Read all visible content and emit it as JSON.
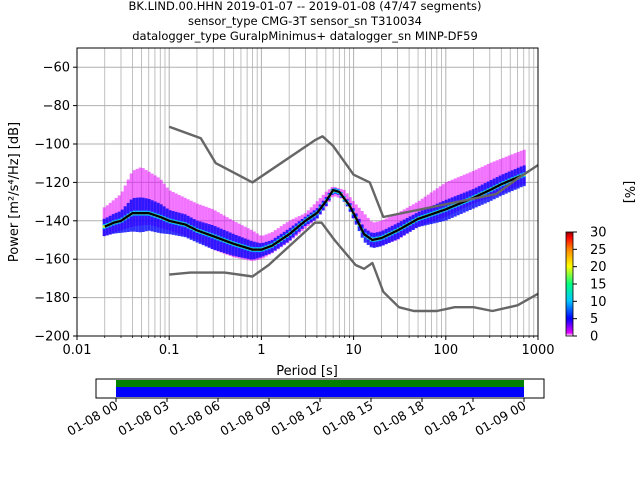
{
  "title_lines": [
    "BK.LIND.00.HHN   2019-01-07 -- 2019-01-08  (47/47 segments)",
    "sensor_type CMG-3T sensor_sn T310034",
    "datalogger_type GuralpMinimus+ datalogger_sn MINP-DF59"
  ],
  "colorbar": {
    "label": "[%]",
    "ticks": [
      "0",
      "5",
      "10",
      "15",
      "20",
      "25",
      "30"
    ],
    "colors": [
      "#ffffff",
      "#e600ff",
      "#0000ff",
      "#00c8ff",
      "#00ff80",
      "#ffff00",
      "#ff8000",
      "#ff0000",
      "#8b0000"
    ]
  },
  "timeline": {
    "ticks": [
      "01-08 00",
      "01-08 03",
      "01-08 06",
      "01-08 09",
      "01-08 12",
      "01-08 15",
      "01-08 18",
      "01-08 21",
      "01-09 00"
    ],
    "bar_colors": {
      "upper": "#008000",
      "lower": "#0000ff"
    }
  },
  "chart_data": {
    "type": "heatmap",
    "xlabel": "Period [s]",
    "ylabel": "Power [m²/s⁴/Hz] [dB]",
    "x_scale": "log",
    "xlim": [
      0.01,
      1000
    ],
    "ylim": [
      -200,
      -50
    ],
    "x_ticks": [
      "0.01",
      "0.1",
      "1",
      "10",
      "100",
      "1000"
    ],
    "y_ticks": [
      "−60",
      "−80",
      "−100",
      "−120",
      "−140",
      "−160",
      "−180",
      "−200"
    ],
    "y_tick_values": [
      -60,
      -80,
      -100,
      -120,
      -140,
      -160,
      -180,
      -200
    ],
    "x_tick_values": [
      0.01,
      0.1,
      1,
      10,
      100,
      1000
    ],
    "grid": true,
    "noise_models": [
      {
        "points": [
          [
            0.1,
            -91
          ],
          [
            0.22,
            -97
          ],
          [
            0.32,
            -110
          ],
          [
            0.8,
            -120
          ],
          [
            3.8,
            -98
          ],
          [
            4.6,
            -96
          ],
          [
            6.0,
            -101
          ],
          [
            10,
            -116
          ],
          [
            15,
            -120
          ],
          [
            21,
            -138
          ],
          [
            354,
            -126
          ],
          [
            600,
            -118
          ],
          [
            1000,
            -111
          ]
        ]
      },
      {
        "points": [
          [
            0.1,
            -168
          ],
          [
            0.17,
            -167
          ],
          [
            0.4,
            -167
          ],
          [
            0.8,
            -169
          ],
          [
            1.2,
            -163
          ],
          [
            3.8,
            -141
          ],
          [
            4.5,
            -141
          ],
          [
            6.2,
            -150
          ],
          [
            10.5,
            -163
          ],
          [
            13,
            -165
          ],
          [
            16,
            -162
          ],
          [
            21,
            -177
          ],
          [
            31,
            -185
          ],
          [
            45,
            -187
          ],
          [
            80,
            -187
          ],
          [
            125,
            -185
          ],
          [
            200,
            -185
          ],
          [
            320,
            -187
          ],
          [
            600,
            -184
          ],
          [
            1000,
            -178
          ]
        ]
      }
    ],
    "ppsd_median": {
      "points": [
        [
          0.02,
          -143
        ],
        [
          0.025,
          -141
        ],
        [
          0.03,
          -140
        ],
        [
          0.04,
          -136
        ],
        [
          0.06,
          -136
        ],
        [
          0.08,
          -138
        ],
        [
          0.1,
          -140
        ],
        [
          0.15,
          -142
        ],
        [
          0.2,
          -145
        ],
        [
          0.3,
          -148
        ],
        [
          0.5,
          -152
        ],
        [
          0.8,
          -155
        ],
        [
          1.0,
          -155
        ],
        [
          1.3,
          -153
        ],
        [
          2.0,
          -147
        ],
        [
          3.0,
          -140
        ],
        [
          4.0,
          -136
        ],
        [
          5.0,
          -130
        ],
        [
          6.0,
          -124
        ],
        [
          7.0,
          -125
        ],
        [
          9.0,
          -132
        ],
        [
          11,
          -140
        ],
        [
          13,
          -147
        ],
        [
          16,
          -150
        ],
        [
          20,
          -149
        ],
        [
          30,
          -145
        ],
        [
          50,
          -139
        ],
        [
          100,
          -134
        ],
        [
          200,
          -128
        ],
        [
          300,
          -124
        ],
        [
          400,
          -121
        ],
        [
          700,
          -116
        ]
      ]
    },
    "ppsd_envelope": {
      "upper": [
        [
          0.02,
          -133
        ],
        [
          0.03,
          -126
        ],
        [
          0.04,
          -114
        ],
        [
          0.05,
          -112
        ],
        [
          0.08,
          -118
        ],
        [
          0.1,
          -124
        ],
        [
          0.2,
          -131
        ],
        [
          0.3,
          -134
        ],
        [
          0.5,
          -140
        ],
        [
          0.8,
          -145
        ],
        [
          1.0,
          -148
        ],
        [
          1.3,
          -146
        ],
        [
          2.0,
          -140
        ],
        [
          3.0,
          -136
        ],
        [
          4.0,
          -130
        ],
        [
          5.0,
          -125
        ],
        [
          6.0,
          -122
        ],
        [
          8.0,
          -124
        ],
        [
          10,
          -130
        ],
        [
          13,
          -136
        ],
        [
          16,
          -141
        ],
        [
          20,
          -140
        ],
        [
          30,
          -136
        ],
        [
          50,
          -130
        ],
        [
          100,
          -120
        ],
        [
          200,
          -114
        ],
        [
          300,
          -110
        ],
        [
          700,
          -103
        ]
      ],
      "lower": [
        [
          0.02,
          -148
        ],
        [
          0.03,
          -145
        ],
        [
          0.04,
          -143
        ],
        [
          0.06,
          -142
        ],
        [
          0.1,
          -145
        ],
        [
          0.2,
          -150
        ],
        [
          0.3,
          -155
        ],
        [
          0.5,
          -159
        ],
        [
          0.8,
          -161
        ],
        [
          1.0,
          -160
        ],
        [
          1.3,
          -157
        ],
        [
          2.0,
          -151
        ],
        [
          3.0,
          -144
        ],
        [
          4.0,
          -139
        ],
        [
          5.0,
          -133
        ],
        [
          6.0,
          -127
        ],
        [
          8.0,
          -129
        ],
        [
          10,
          -139
        ],
        [
          13,
          -148
        ],
        [
          16,
          -154
        ],
        [
          20,
          -153
        ],
        [
          30,
          -150
        ],
        [
          50,
          -143
        ],
        [
          100,
          -138
        ],
        [
          200,
          -131
        ],
        [
          300,
          -128
        ],
        [
          700,
          -121
        ]
      ]
    }
  }
}
